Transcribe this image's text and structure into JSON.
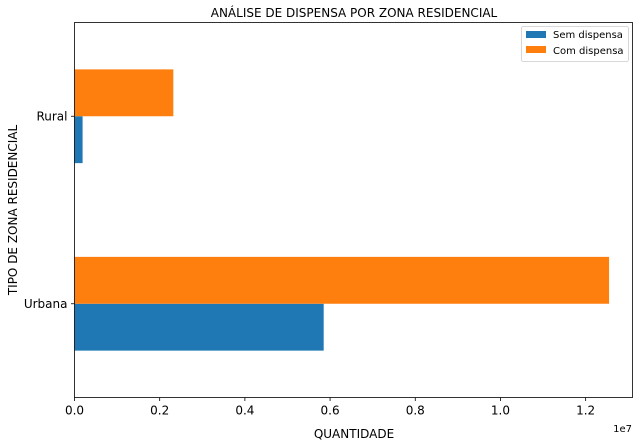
{
  "chart_data": {
    "type": "bar",
    "orientation": "horizontal",
    "title": "ANÁLISE DE DISPENSA POR ZONA RESIDENCIAL",
    "xlabel": "QUANTIDADE",
    "ylabel": "TIPO DE ZONA RESIDENCIAL",
    "x_offset_label": "1e7",
    "categories": [
      "Urbana",
      "Rural"
    ],
    "series": [
      {
        "name": "Sem dispensa",
        "color": "#1f77b4",
        "values": [
          5850000,
          190000
        ]
      },
      {
        "name": "Com dispensa",
        "color": "#ff7f0e",
        "values": [
          12550000,
          2320000
        ]
      }
    ],
    "xlim": [
      0,
      13100000
    ],
    "x_ticks": [
      {
        "value": 0,
        "label": "0.0"
      },
      {
        "value": 2000000,
        "label": "0.2"
      },
      {
        "value": 4000000,
        "label": "0.4"
      },
      {
        "value": 6000000,
        "label": "0.6"
      },
      {
        "value": 8000000,
        "label": "0.8"
      },
      {
        "value": 10000000,
        "label": "1.0"
      },
      {
        "value": 12000000,
        "label": "1.2"
      }
    ],
    "grid": false,
    "legend_position": "top-right"
  }
}
